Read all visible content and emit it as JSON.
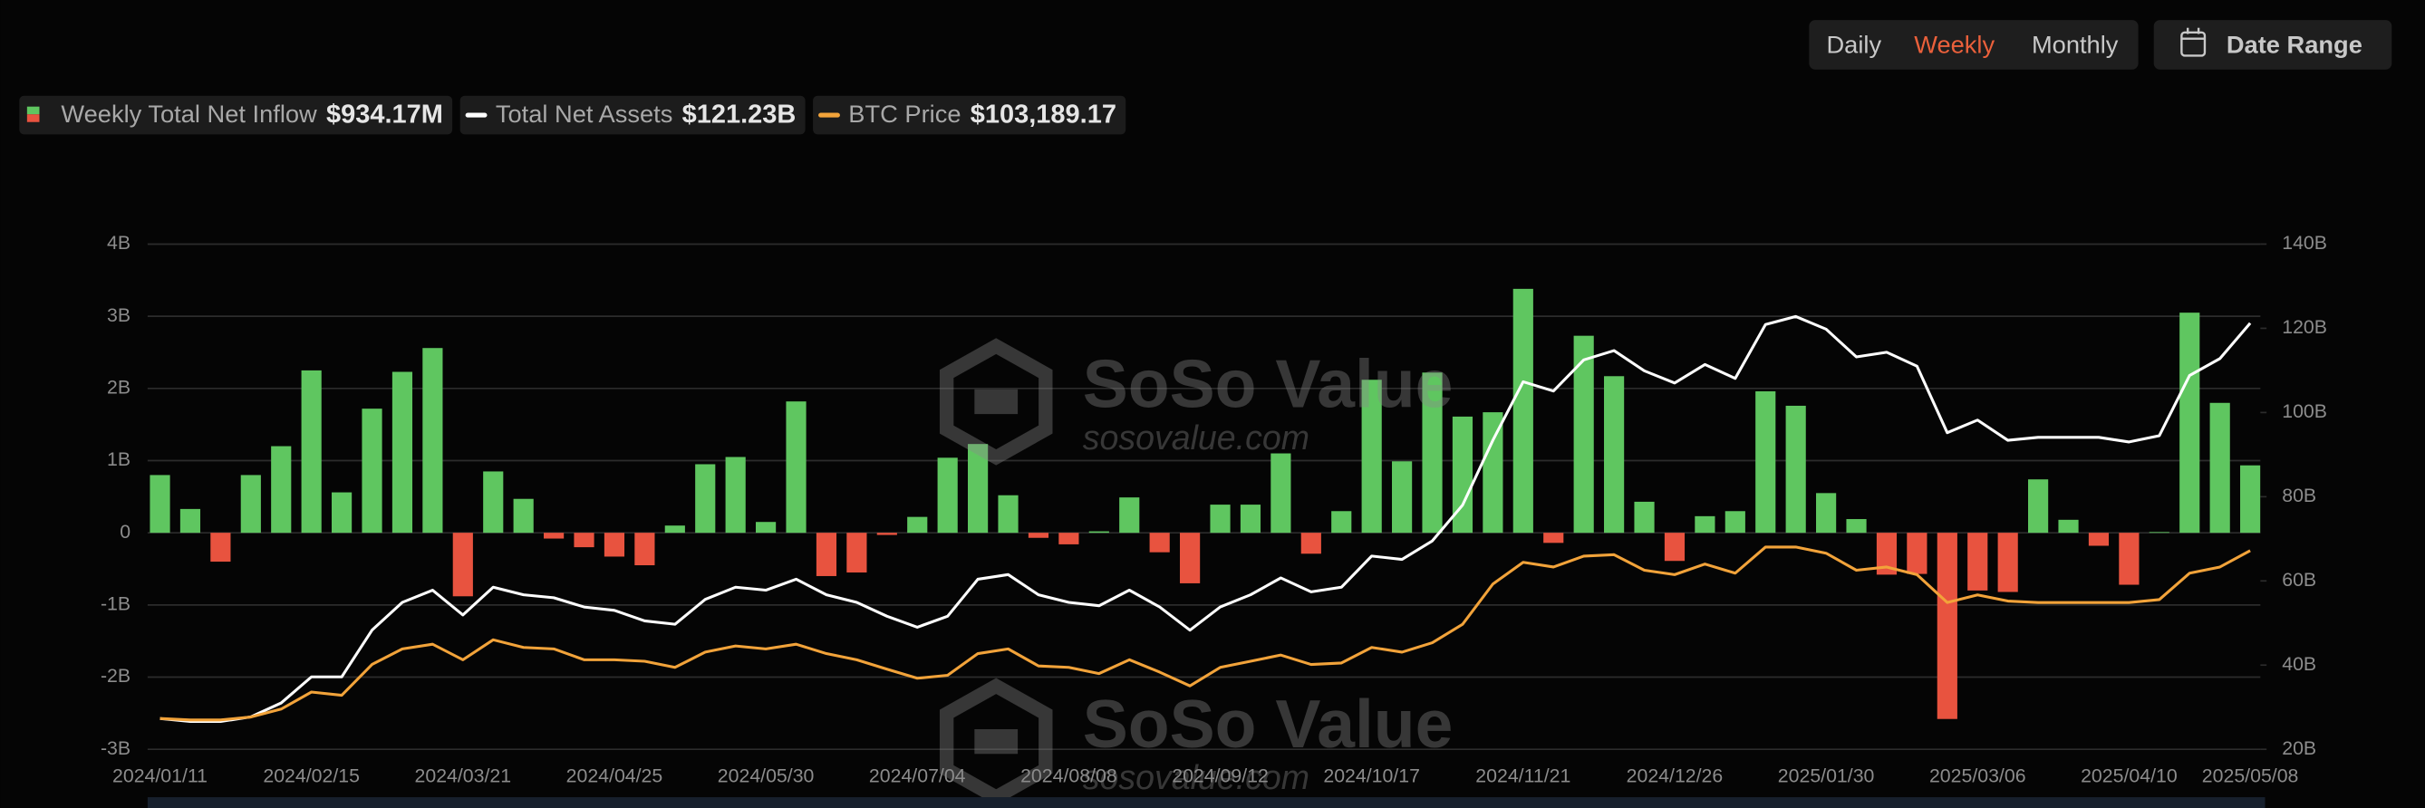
{
  "controls": {
    "periods": [
      "Daily",
      "Weekly",
      "Monthly"
    ],
    "active_period": "Weekly",
    "date_range": "Date Range"
  },
  "watermark": {
    "brand": "SoSo Value",
    "url": "sosovalue.com"
  },
  "chart_data": {
    "type": "combo",
    "categories": [
      "2024/01/11",
      null,
      null,
      null,
      null,
      "2024/02/15",
      null,
      null,
      null,
      null,
      "2024/03/21",
      null,
      null,
      null,
      null,
      "2024/04/25",
      null,
      null,
      null,
      null,
      "2024/05/30",
      null,
      null,
      null,
      null,
      "2024/07/04",
      null,
      null,
      null,
      null,
      "2024/08/08",
      null,
      null,
      null,
      null,
      "2024/09/12",
      null,
      null,
      null,
      null,
      "2024/10/17",
      null,
      null,
      null,
      null,
      "2024/11/21",
      null,
      null,
      null,
      null,
      "2024/12/26",
      null,
      null,
      null,
      null,
      "2025/01/30",
      null,
      null,
      null,
      null,
      "2025/03/06",
      null,
      null,
      null,
      null,
      "2025/04/10",
      null,
      null,
      null,
      "2025/05/08"
    ],
    "ylim": [
      -3,
      4
    ],
    "yticks": [
      {
        "value": -3,
        "label": "-3B"
      },
      {
        "value": -2,
        "label": "-2B"
      },
      {
        "value": -1,
        "label": "-1B"
      },
      0,
      {
        "value": 1,
        "label": "1B"
      },
      {
        "value": 2,
        "label": "2B"
      },
      {
        "value": 3,
        "label": "3B"
      },
      {
        "value": 4,
        "label": "4B"
      }
    ],
    "y2lim": [
      20,
      140
    ],
    "y2ticks": [
      {
        "value": 20,
        "label": "20B"
      },
      {
        "value": 40,
        "label": "40B"
      },
      {
        "value": 60,
        "label": "60B"
      },
      {
        "value": 80,
        "label": "80B"
      },
      {
        "value": 100,
        "label": "100B"
      },
      {
        "value": 120,
        "label": "120B"
      },
      {
        "value": 140,
        "label": "140B"
      }
    ],
    "y3lim": [
      35500,
      207600
    ],
    "grid": true,
    "series": [
      {
        "name": "Weekly Total Net Inflow",
        "latest_label": "$934.17M",
        "type": "bar",
        "color": "#5fc660",
        "negative_color": "#e8533f",
        "values": [
          0.8,
          0.33,
          -0.4,
          0.8,
          1.2,
          2.25,
          0.56,
          1.72,
          2.23,
          2.56,
          -0.88,
          0.85,
          0.47,
          -0.08,
          -0.2,
          -0.33,
          -0.45,
          0.1,
          0.95,
          1.05,
          0.15,
          1.82,
          -0.6,
          -0.55,
          -0.03,
          0.22,
          1.04,
          1.23,
          0.52,
          -0.07,
          -0.16,
          0.02,
          0.49,
          -0.27,
          -0.7,
          0.39,
          0.39,
          1.1,
          -0.29,
          0.3,
          2.12,
          0.99,
          2.22,
          1.61,
          1.67,
          3.38,
          -0.14,
          2.73,
          2.17,
          0.43,
          -0.39,
          0.23,
          0.3,
          1.96,
          1.76,
          0.55,
          0.19,
          -0.58,
          -0.57,
          -2.58,
          -0.8,
          -0.82,
          0.74,
          0.18,
          -0.18,
          -0.72,
          0.01,
          3.05,
          1.8,
          0.93417
        ]
      },
      {
        "name": "Total Net Assets",
        "latest_label": "$121.23B",
        "type": "line",
        "axis": "y2",
        "color": "#ffffff",
        "values": [
          27.3,
          26.6,
          26.6,
          27.7,
          31,
          37.2,
          37.2,
          48.3,
          54.9,
          57.8,
          51.9,
          58.5,
          56.7,
          56,
          53.8,
          53,
          50.5,
          49.7,
          55.6,
          58.5,
          57.8,
          60.4,
          56.7,
          54.9,
          51.6,
          49,
          51.6,
          60.4,
          61.5,
          56.7,
          54.9,
          54.1,
          57.8,
          53.8,
          48.3,
          53.8,
          56.7,
          60.7,
          57.4,
          58.5,
          65.9,
          65.1,
          69.5,
          78,
          93.4,
          107.3,
          105.1,
          112.5,
          114.7,
          109.9,
          107,
          111.4,
          108.1,
          120.9,
          122.8,
          119.8,
          113.2,
          114.3,
          111,
          95.2,
          98.2,
          93.4,
          94.1,
          94.1,
          94.1,
          93,
          94.5,
          108.8,
          112.8,
          121.23
        ]
      },
      {
        "name": "BTC Price",
        "latest_label": "$103,189.17",
        "type": "line",
        "axis": "y3",
        "color": "#f2a33a",
        "values": [
          46000,
          45500,
          45500,
          46500,
          49200,
          55000,
          53900,
          64400,
          69700,
          71300,
          66000,
          72800,
          70200,
          69700,
          66000,
          66000,
          65500,
          63400,
          68600,
          70700,
          69700,
          71300,
          68100,
          66000,
          62800,
          59700,
          60700,
          68100,
          69700,
          63900,
          63400,
          61300,
          66000,
          61800,
          57100,
          63400,
          65500,
          67600,
          64400,
          64900,
          70200,
          68600,
          71800,
          78100,
          91800,
          99200,
          97600,
          101300,
          101800,
          96500,
          95000,
          98600,
          95500,
          104400,
          104400,
          102300,
          96500,
          97600,
          95000,
          85500,
          88100,
          86000,
          85500,
          85500,
          85500,
          85500,
          86500,
          95500,
          97600,
          103189.17
        ]
      }
    ]
  }
}
